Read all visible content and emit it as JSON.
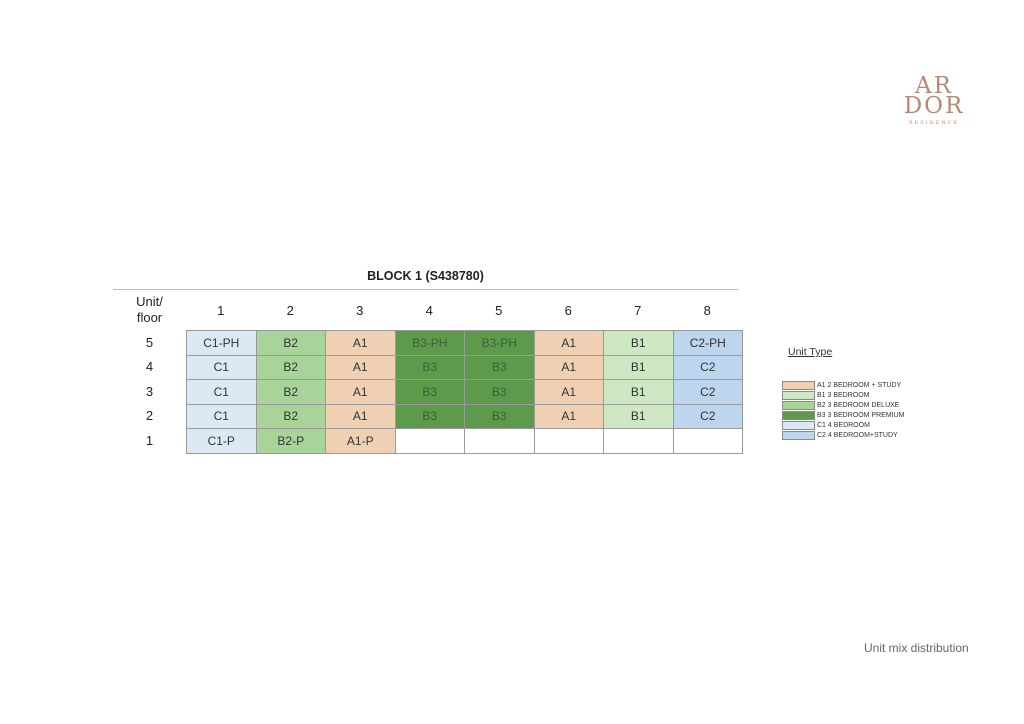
{
  "logo": {
    "line1": "AR",
    "line2": "DOR",
    "sub": "RESIDENCE"
  },
  "block_title": "BLOCK 1 (S438780)",
  "table": {
    "corner_label": "Unit/\nfloor",
    "columns": [
      "1",
      "2",
      "3",
      "4",
      "5",
      "6",
      "7",
      "8"
    ],
    "rows": [
      {
        "floor": "5",
        "cells": [
          "C1-PH",
          "B2",
          "A1",
          "B3-PH",
          "B3-PH",
          "A1",
          "B1",
          "C2-PH"
        ],
        "types": [
          "C1",
          "B2",
          "A1",
          "B3",
          "B3",
          "A1",
          "B1",
          "C2"
        ]
      },
      {
        "floor": "4",
        "cells": [
          "C1",
          "B2",
          "A1",
          "B3",
          "B3",
          "A1",
          "B1",
          "C2"
        ],
        "types": [
          "C1",
          "B2",
          "A1",
          "B3",
          "B3",
          "A1",
          "B1",
          "C2"
        ]
      },
      {
        "floor": "3",
        "cells": [
          "C1",
          "B2",
          "A1",
          "B3",
          "B3",
          "A1",
          "B1",
          "C2"
        ],
        "types": [
          "C1",
          "B2",
          "A1",
          "B3",
          "B3",
          "A1",
          "B1",
          "C2"
        ]
      },
      {
        "floor": "2",
        "cells": [
          "C1",
          "B2",
          "A1",
          "B3",
          "B3",
          "A1",
          "B1",
          "C2"
        ],
        "types": [
          "C1",
          "B2",
          "A1",
          "B3",
          "B3",
          "A1",
          "B1",
          "C2"
        ]
      },
      {
        "floor": "1",
        "cells": [
          "C1-P",
          "B2-P",
          "A1-P",
          "",
          "",
          "",
          "",
          ""
        ],
        "types": [
          "C1",
          "B2",
          "A1",
          "",
          "",
          "",
          "",
          ""
        ]
      }
    ]
  },
  "legend": {
    "title": "Unit Type",
    "items": [
      {
        "code": "A1",
        "text": "A1  2 BEDROOM + STUDY",
        "color": "#efd0b2"
      },
      {
        "code": "B1",
        "text": "B1  3 BEDROOM",
        "color": "#cfe8c4"
      },
      {
        "code": "B2",
        "text": "B2  3 BEDROOM DELUXE",
        "color": "#a8d49a"
      },
      {
        "code": "B3",
        "text": "B3  3 BEDROOM PREMIUM",
        "color": "#5e9a4c"
      },
      {
        "code": "C1",
        "text": "C1  4 BEDROOM",
        "color": "#dbe9f5"
      },
      {
        "code": "C2",
        "text": "C2  4 BEDROOM+STUDY",
        "color": "#bdd6ee"
      }
    ]
  },
  "footer": "Unit mix distribution"
}
